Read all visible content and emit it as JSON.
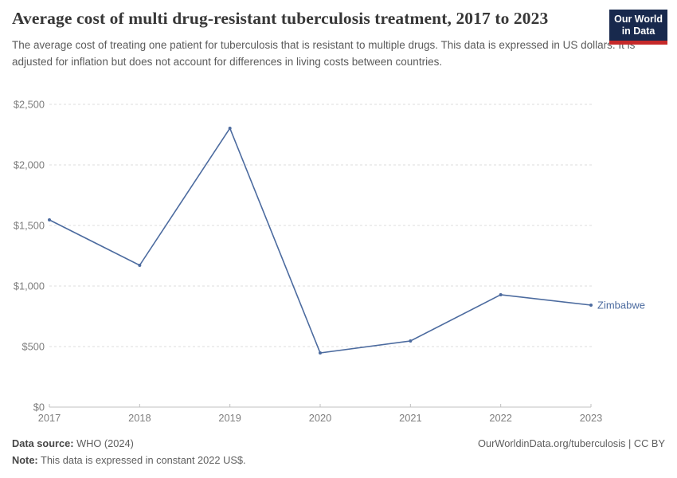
{
  "header": {
    "title": "Average cost of multi drug-resistant tuberculosis treatment, 2017 to 2023",
    "subtitle": "The average cost of treating one patient for tuberculosis that is resistant to multiple drugs. This data is expressed in US dollars. It is adjusted for inflation but does not account for differences in living costs between countries."
  },
  "logo": {
    "line1": "Our World",
    "line2": "in Data",
    "background_color": "#18294d",
    "accent_color": "#c5292a"
  },
  "chart_data": {
    "type": "line",
    "title": "Average cost of multi drug-resistant tuberculosis treatment, 2017 to 2023",
    "x": [
      2017,
      2018,
      2019,
      2020,
      2021,
      2022,
      2023
    ],
    "series": [
      {
        "name": "Zimbabwe",
        "color": "#4C6B9F",
        "values": [
          1546,
          1171,
          2303,
          447,
          546,
          928,
          842
        ]
      }
    ],
    "xlabel": "",
    "ylabel": "",
    "ylim": [
      0,
      2500
    ],
    "y_ticks": [
      {
        "value": 0,
        "label": "$0"
      },
      {
        "value": 500,
        "label": "$500"
      },
      {
        "value": 1000,
        "label": "$1,000"
      },
      {
        "value": 1500,
        "label": "$1,500"
      },
      {
        "value": 2000,
        "label": "$2,000"
      },
      {
        "value": 2500,
        "label": "$2,500"
      }
    ],
    "grid": "horizontal-dashed",
    "legend": "end-of-line-label"
  },
  "footer": {
    "datasource_label": "Data source:",
    "datasource_value": " WHO (2024)",
    "note_label": "Note:",
    "note_value": " This data is expressed in constant 2022 US$.",
    "link": "OurWorldinData.org/tuberculosis | CC BY"
  }
}
